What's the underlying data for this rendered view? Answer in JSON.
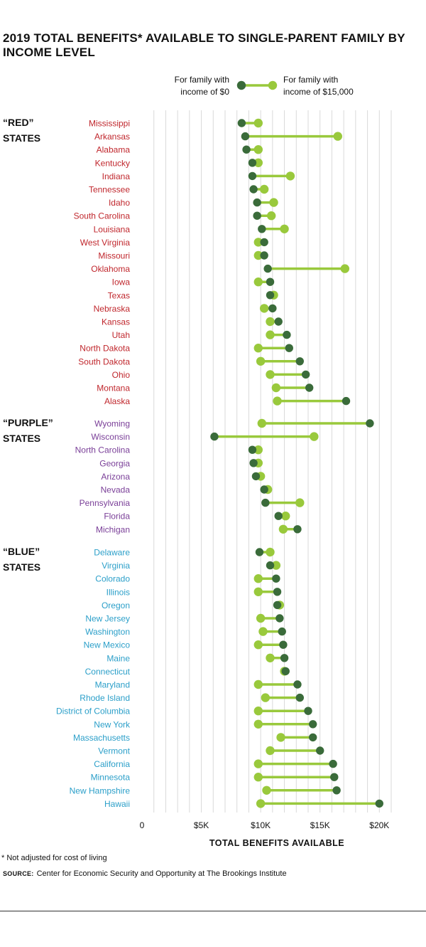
{
  "title": "2019 TOTAL BENEFITS* AVAILABLE TO SINGLE-PARENT FAMILY BY INCOME LEVEL",
  "legend": {
    "dark_label": [
      "For family with",
      "income of $0"
    ],
    "light_label": [
      "For family with",
      "income of $15,000"
    ]
  },
  "footnote": "* Not adjusted for cost of living",
  "source_label": "SOURCE:",
  "source_text": "Center for Economic Security and Opportunity at The Brookings Institute",
  "colors": {
    "dark_dot": "#3a6b3a",
    "light_dot": "#99c93c",
    "connector": "#99c93c",
    "red_states": "#c0272d",
    "purple_states": "#7a3f98",
    "blue_states": "#2b9fc9",
    "grid": "#d9d9d9"
  },
  "chart_data": {
    "type": "dumbbell",
    "xlabel": "TOTAL BENEFITS AVAILABLE",
    "xlim": [
      0,
      21000
    ],
    "x_ticks": [
      {
        "value": 0,
        "label": "0"
      },
      {
        "value": 5000,
        "label": "$5K"
      },
      {
        "value": 10000,
        "label": "$10K"
      },
      {
        "value": 15000,
        "label": "$15K"
      },
      {
        "value": 20000,
        "label": "$20K"
      }
    ],
    "grid": true,
    "series": [
      {
        "key": "income_0",
        "name": "For family with income of $0"
      },
      {
        "key": "income_15000",
        "name": "For family with income of $15,000"
      }
    ],
    "groups": [
      {
        "label": [
          "“RED”",
          "STATES"
        ],
        "color_key": "red_states",
        "states": [
          {
            "name": "Mississippi",
            "income_0": 8400,
            "income_15000": 9800
          },
          {
            "name": "Arkansas",
            "income_0": 8700,
            "income_15000": 16500
          },
          {
            "name": "Alabama",
            "income_0": 8800,
            "income_15000": 9800
          },
          {
            "name": "Kentucky",
            "income_0": 9300,
            "income_15000": 9800
          },
          {
            "name": "Indiana",
            "income_0": 9300,
            "income_15000": 12500
          },
          {
            "name": "Tennessee",
            "income_0": 9400,
            "income_15000": 10300
          },
          {
            "name": "Idaho",
            "income_0": 9700,
            "income_15000": 11100
          },
          {
            "name": "South Carolina",
            "income_0": 9700,
            "income_15000": 10900
          },
          {
            "name": "Louisiana",
            "income_0": 10100,
            "income_15000": 12000
          },
          {
            "name": "West Virginia",
            "income_0": 10300,
            "income_15000": 9800
          },
          {
            "name": "Missouri",
            "income_0": 10300,
            "income_15000": 9800
          },
          {
            "name": "Oklahoma",
            "income_0": 10600,
            "income_15000": 17100
          },
          {
            "name": "Iowa",
            "income_0": 10800,
            "income_15000": 9800
          },
          {
            "name": "Texas",
            "income_0": 10800,
            "income_15000": 11100
          },
          {
            "name": "Nebraska",
            "income_0": 11000,
            "income_15000": 10300
          },
          {
            "name": "Kansas",
            "income_0": 11500,
            "income_15000": 10800
          },
          {
            "name": "Utah",
            "income_0": 12200,
            "income_15000": 10800
          },
          {
            "name": "North Dakota",
            "income_0": 12400,
            "income_15000": 9800
          },
          {
            "name": "South Dakota",
            "income_0": 13300,
            "income_15000": 10000
          },
          {
            "name": "Ohio",
            "income_0": 13800,
            "income_15000": 10800
          },
          {
            "name": "Montana",
            "income_0": 14100,
            "income_15000": 11300
          },
          {
            "name": "Alaska",
            "income_0": 17200,
            "income_15000": 11400
          }
        ]
      },
      {
        "label": [
          "“PURPLE”",
          "STATES"
        ],
        "color_key": "purple_states",
        "states": [
          {
            "name": "Wyoming",
            "income_0": 19200,
            "income_15000": 10100
          },
          {
            "name": "Wisconsin",
            "income_0": 6100,
            "income_15000": 14500
          },
          {
            "name": "North Carolina",
            "income_0": 9300,
            "income_15000": 9800
          },
          {
            "name": "Georgia",
            "income_0": 9400,
            "income_15000": 9800
          },
          {
            "name": "Arizona",
            "income_0": 9600,
            "income_15000": 10000
          },
          {
            "name": "Nevada",
            "income_0": 10300,
            "income_15000": 10600
          },
          {
            "name": "Pennsylvania",
            "income_0": 10400,
            "income_15000": 13300
          },
          {
            "name": "Florida",
            "income_0": 11500,
            "income_15000": 12100
          },
          {
            "name": "Michigan",
            "income_0": 13100,
            "income_15000": 11900
          }
        ]
      },
      {
        "label": [
          "“BLUE”",
          "STATES"
        ],
        "color_key": "blue_states",
        "states": [
          {
            "name": "Delaware",
            "income_0": 9900,
            "income_15000": 10800
          },
          {
            "name": "Virginia",
            "income_0": 10800,
            "income_15000": 11300
          },
          {
            "name": "Colorado",
            "income_0": 11300,
            "income_15000": 9800
          },
          {
            "name": "Illinois",
            "income_0": 11400,
            "income_15000": 9800
          },
          {
            "name": "Oregon",
            "income_0": 11400,
            "income_15000": 11600
          },
          {
            "name": "New Jersey",
            "income_0": 11600,
            "income_15000": 10000
          },
          {
            "name": "Washington",
            "income_0": 11800,
            "income_15000": 10200
          },
          {
            "name": "New Mexico",
            "income_0": 11900,
            "income_15000": 9800
          },
          {
            "name": "Maine",
            "income_0": 12000,
            "income_15000": 10800
          },
          {
            "name": "Connecticut",
            "income_0": 12100,
            "income_15000": 12000
          },
          {
            "name": "Maryland",
            "income_0": 13100,
            "income_15000": 9800
          },
          {
            "name": "Rhode Island",
            "income_0": 13300,
            "income_15000": 10400
          },
          {
            "name": "District of Columbia",
            "income_0": 14000,
            "income_15000": 9800
          },
          {
            "name": "New York",
            "income_0": 14400,
            "income_15000": 9800
          },
          {
            "name": "Massachusetts",
            "income_0": 14400,
            "income_15000": 11700
          },
          {
            "name": "Vermont",
            "income_0": 15000,
            "income_15000": 10800
          },
          {
            "name": "California",
            "income_0": 16100,
            "income_15000": 9800
          },
          {
            "name": "Minnesota",
            "income_0": 16200,
            "income_15000": 9800
          },
          {
            "name": "New Hampshire",
            "income_0": 16400,
            "income_15000": 10500
          },
          {
            "name": "Hawaii",
            "income_0": 20000,
            "income_15000": 10000
          }
        ]
      }
    ]
  }
}
